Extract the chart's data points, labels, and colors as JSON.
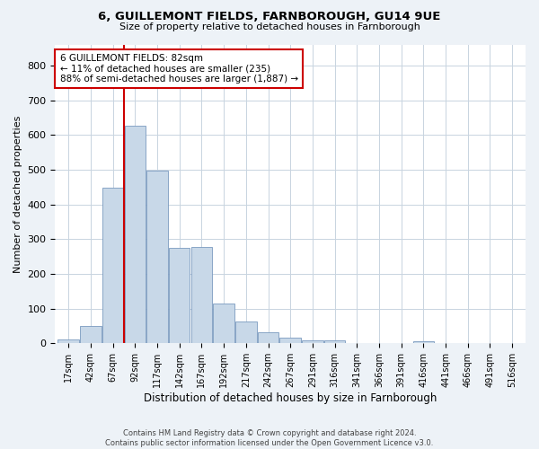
{
  "title1": "6, GUILLEMONT FIELDS, FARNBOROUGH, GU14 9UE",
  "title2": "Size of property relative to detached houses in Farnborough",
  "xlabel": "Distribution of detached houses by size in Farnborough",
  "ylabel": "Number of detached properties",
  "bar_labels": [
    "17sqm",
    "42sqm",
    "67sqm",
    "92sqm",
    "117sqm",
    "142sqm",
    "167sqm",
    "192sqm",
    "217sqm",
    "242sqm",
    "267sqm",
    "291sqm",
    "316sqm",
    "341sqm",
    "366sqm",
    "391sqm",
    "416sqm",
    "441sqm",
    "466sqm",
    "491sqm",
    "516sqm"
  ],
  "bar_values": [
    10,
    50,
    448,
    628,
    498,
    275,
    278,
    116,
    62,
    33,
    17,
    9,
    8,
    0,
    0,
    0,
    5,
    0,
    0,
    0,
    0
  ],
  "bar_color": "#c8d8e8",
  "bar_edge_color": "#7a9abf",
  "vline_color": "#cc0000",
  "vline_x_index": 3,
  "annotation_text": "6 GUILLEMONT FIELDS: 82sqm\n← 11% of detached houses are smaller (235)\n88% of semi-detached houses are larger (1,887) →",
  "annotation_box_color": "#ffffff",
  "annotation_box_edge": "#cc0000",
  "ylim": [
    0,
    860
  ],
  "yticks": [
    0,
    100,
    200,
    300,
    400,
    500,
    600,
    700,
    800
  ],
  "footer": "Contains HM Land Registry data © Crown copyright and database right 2024.\nContains public sector information licensed under the Open Government Licence v3.0.",
  "background_color": "#edf2f7",
  "plot_bg_color": "#ffffff",
  "grid_color": "#c8d4e0"
}
